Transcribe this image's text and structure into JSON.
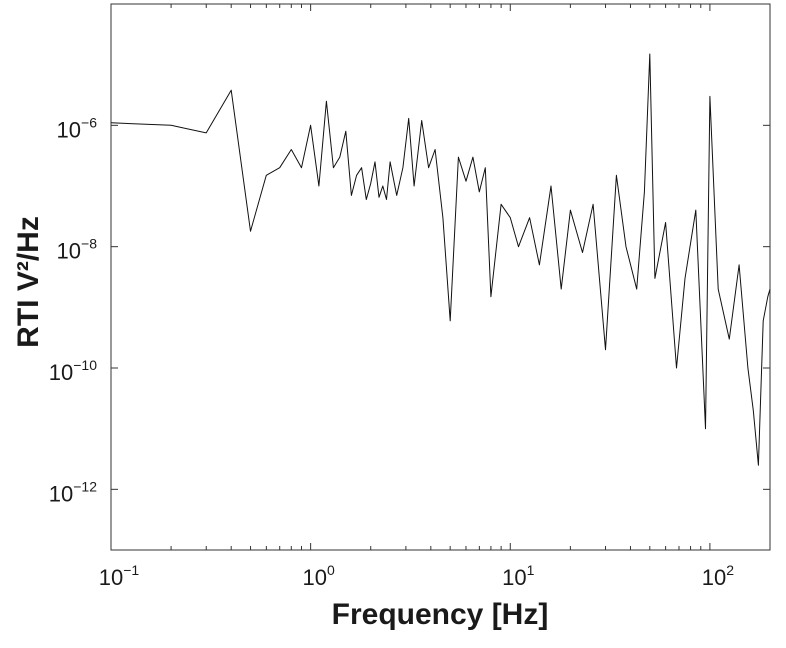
{
  "chart_data": {
    "type": "line",
    "title": "",
    "xlabel": "Frequency [Hz]",
    "ylabel": "RTI V²/Hz",
    "xscale": "log",
    "yscale": "log",
    "xlim": [
      0.1,
      200
    ],
    "ylim": [
      1e-13,
      0.0001
    ],
    "grid": false,
    "legend": "none",
    "line_color": "#111111",
    "x_ticks": [
      {
        "base": "10",
        "exp": "−1",
        "value": 0.1
      },
      {
        "base": "10",
        "exp": "0",
        "value": 1
      },
      {
        "base": "10",
        "exp": "1",
        "value": 10
      },
      {
        "base": "10",
        "exp": "2",
        "value": 100
      }
    ],
    "y_ticks": [
      {
        "base": "10",
        "exp": "−12",
        "value": 1e-12
      },
      {
        "base": "10",
        "exp": "−10",
        "value": 1e-10
      },
      {
        "base": "10",
        "exp": "−8",
        "value": 1e-08
      },
      {
        "base": "10",
        "exp": "−6",
        "value": 1e-06
      }
    ],
    "series": [
      {
        "points": [
          [
            0.1,
            1.1e-06
          ],
          [
            0.2,
            1e-06
          ],
          [
            0.3,
            7.5e-07
          ],
          [
            0.4,
            3.8e-06
          ],
          [
            0.5,
            1.8e-08
          ],
          [
            0.6,
            1.5e-07
          ],
          [
            0.7,
            2e-07
          ],
          [
            0.8,
            4e-07
          ],
          [
            0.9,
            2e-07
          ],
          [
            1.0,
            1e-06
          ],
          [
            1.1,
            1e-07
          ],
          [
            1.2,
            2.5e-06
          ],
          [
            1.3,
            2e-07
          ],
          [
            1.4,
            3e-07
          ],
          [
            1.5,
            8e-07
          ],
          [
            1.6,
            7e-08
          ],
          [
            1.7,
            1.5e-07
          ],
          [
            1.8,
            2e-07
          ],
          [
            1.9,
            6e-08
          ],
          [
            2.0,
            1.1e-07
          ],
          [
            2.1,
            2.5e-07
          ],
          [
            2.2,
            6.5e-08
          ],
          [
            2.3,
            1e-07
          ],
          [
            2.4,
            6e-08
          ],
          [
            2.5,
            2.5e-07
          ],
          [
            2.7,
            7e-08
          ],
          [
            2.9,
            2e-07
          ],
          [
            3.1,
            1.3e-06
          ],
          [
            3.3,
            1e-07
          ],
          [
            3.6,
            1.2e-06
          ],
          [
            3.9,
            2e-07
          ],
          [
            4.2,
            4e-07
          ],
          [
            4.6,
            3e-08
          ],
          [
            5.0,
            6e-10
          ],
          [
            5.5,
            3e-07
          ],
          [
            6.0,
            1.2e-07
          ],
          [
            6.5,
            3e-07
          ],
          [
            7.0,
            8e-08
          ],
          [
            7.5,
            2e-07
          ],
          [
            8.0,
            1.5e-09
          ],
          [
            9.0,
            5e-08
          ],
          [
            10.0,
            3e-08
          ],
          [
            11.0,
            1e-08
          ],
          [
            12.5,
            3e-08
          ],
          [
            14.0,
            5e-09
          ],
          [
            16.0,
            1e-07
          ],
          [
            18.0,
            2e-09
          ],
          [
            20.0,
            4e-08
          ],
          [
            23.0,
            8e-09
          ],
          [
            26.0,
            5e-08
          ],
          [
            30.0,
            2e-10
          ],
          [
            34.0,
            1.5e-07
          ],
          [
            38.0,
            1e-08
          ],
          [
            43.0,
            2e-09
          ],
          [
            47.0,
            8e-08
          ],
          [
            50.0,
            1.5e-05
          ],
          [
            53.0,
            3e-09
          ],
          [
            60.0,
            2.5e-08
          ],
          [
            68.0,
            1e-10
          ],
          [
            75.0,
            3e-09
          ],
          [
            85.0,
            4e-08
          ],
          [
            95.0,
            1e-11
          ],
          [
            100.0,
            3e-06
          ],
          [
            110.0,
            2e-09
          ],
          [
            125.0,
            3e-10
          ],
          [
            140.0,
            5e-09
          ],
          [
            155.0,
            1e-10
          ],
          [
            165.0,
            2e-11
          ],
          [
            175.0,
            2.5e-12
          ],
          [
            185.0,
            6e-10
          ],
          [
            195.0,
            1.5e-09
          ],
          [
            200.0,
            2e-09
          ]
        ]
      }
    ]
  }
}
